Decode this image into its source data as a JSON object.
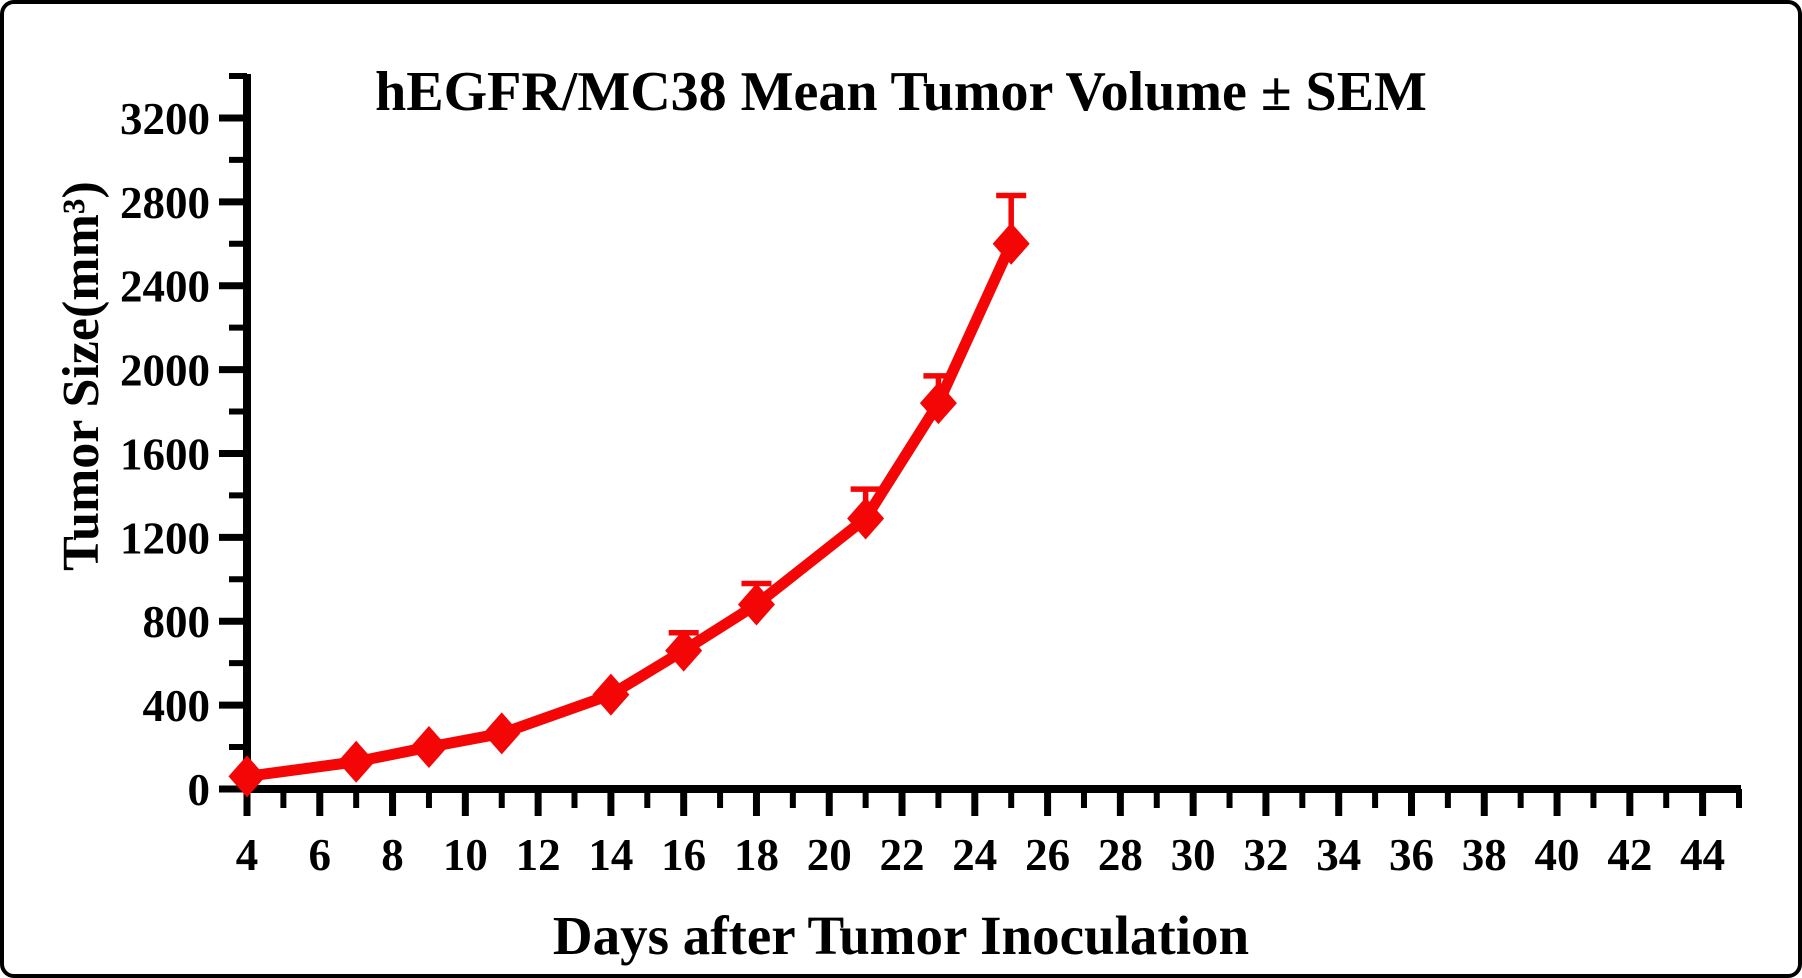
{
  "window": {
    "background": "#ffffff",
    "border_color": "#000000"
  },
  "chart_data": {
    "type": "line",
    "title": "hEGFR/MC38 Mean Tumor Volume ± SEM",
    "xlabel": "Days after Tumor Inoculation",
    "ylabel": "Tumor Size(mm³)",
    "x": [
      4,
      7,
      9,
      11,
      14,
      16,
      18,
      21,
      23,
      25
    ],
    "series": [
      {
        "name": "hEGFR/MC38 Mean Tumor Volume",
        "values": [
          60,
          130,
          200,
          265,
          450,
          660,
          880,
          1290,
          1840,
          2600
        ],
        "sem": [
          5,
          10,
          15,
          20,
          30,
          85,
          100,
          140,
          130,
          230
        ],
        "color": "#f40606",
        "marker": "diamond"
      }
    ],
    "xlim": [
      4,
      45
    ],
    "ylim": [
      0,
      3400
    ],
    "x_ticks": [
      4,
      6,
      8,
      10,
      12,
      14,
      16,
      18,
      20,
      22,
      24,
      26,
      28,
      30,
      32,
      34,
      36,
      38,
      40,
      42,
      44
    ],
    "x_minor_step": 1,
    "y_ticks": [
      0,
      400,
      800,
      1200,
      1600,
      2000,
      2400,
      2800,
      3200
    ],
    "y_minor_step": 200,
    "grid": false,
    "legend": "none",
    "axis_color": "#000000",
    "error_bar_direction": "up"
  }
}
